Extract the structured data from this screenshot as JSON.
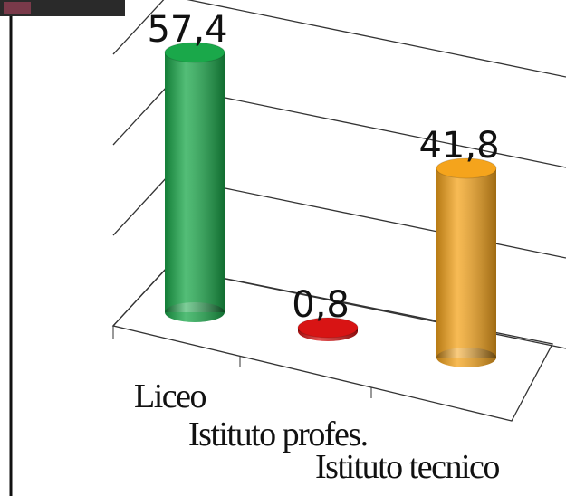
{
  "chart_data": {
    "type": "bar",
    "categories": [
      "Liceo",
      "Istituto profes.",
      "Istituto tecnico"
    ],
    "values": [
      57.4,
      0.8,
      41.8
    ],
    "value_labels": [
      "57,4",
      "0,8",
      "41,8"
    ],
    "colors": [
      "#1aa84a",
      "#d81414",
      "#f5a41c"
    ],
    "ylim": [
      0,
      60
    ],
    "yticks": [
      0,
      20,
      40,
      60
    ],
    "grid": true
  }
}
